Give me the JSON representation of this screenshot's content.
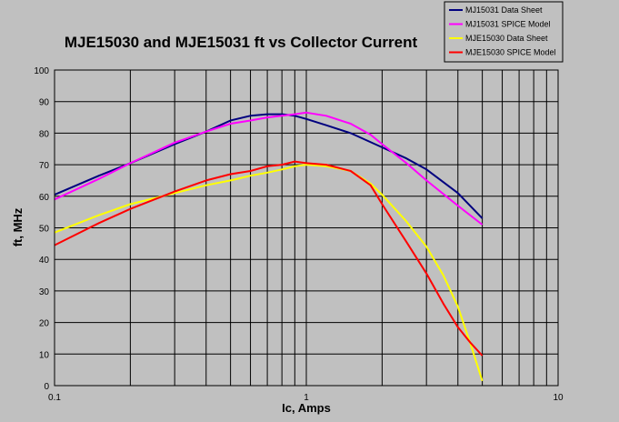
{
  "chart_data": {
    "type": "line",
    "title": "MJE15030 and MJE15031 ft vs Collector Current",
    "xlabel": "Ic, Amps",
    "ylabel": "ft, MHz",
    "xscale": "log",
    "xlim": [
      0.1,
      10
    ],
    "ylim": [
      0,
      100
    ],
    "x_ticks": [
      {
        "value": 0.1,
        "label": "0.1"
      },
      {
        "value": 1,
        "label": "1"
      },
      {
        "value": 10,
        "label": "10"
      }
    ],
    "y_ticks": [
      0,
      10,
      20,
      30,
      40,
      50,
      60,
      70,
      80,
      90,
      100
    ],
    "grid": true,
    "legend_position": "top-right",
    "background": "#c0c0c0",
    "series": [
      {
        "name": "MJ15031 Data Sheet",
        "color": "#00007f",
        "x": [
          0.1,
          0.15,
          0.2,
          0.3,
          0.4,
          0.5,
          0.6,
          0.7,
          0.8,
          0.9,
          1.0,
          1.2,
          1.5,
          2.0,
          2.5,
          3.0,
          4.0,
          5.0
        ],
        "y": [
          60.5,
          66.5,
          70.5,
          76.5,
          80.5,
          84,
          85.5,
          86,
          86,
          85.5,
          84.5,
          82.5,
          80,
          75.5,
          72,
          68.5,
          61,
          53
        ]
      },
      {
        "name": "MJ15031 SPICE Model",
        "color": "#ff00ff",
        "x": [
          0.1,
          0.15,
          0.2,
          0.3,
          0.4,
          0.5,
          0.6,
          0.7,
          0.8,
          0.9,
          1.0,
          1.2,
          1.5,
          1.8,
          2.0,
          2.5,
          3.0,
          4.0,
          5.0
        ],
        "y": [
          59,
          65.5,
          70.5,
          77,
          80.5,
          83,
          84,
          85,
          85.5,
          86,
          86.5,
          85.5,
          83,
          79.5,
          76.5,
          70.5,
          65,
          57,
          51
        ]
      },
      {
        "name": "MJE15030 Data Sheet",
        "color": "#ffff00",
        "x": [
          0.1,
          0.15,
          0.2,
          0.3,
          0.4,
          0.5,
          0.6,
          0.7,
          0.8,
          0.9,
          1.0,
          1.2,
          1.5,
          1.8,
          2.0,
          2.5,
          3.0,
          3.5,
          4.0,
          4.5,
          5.0
        ],
        "y": [
          48.5,
          54,
          57.5,
          61,
          63.5,
          65,
          66.5,
          67.5,
          68.5,
          69.5,
          70,
          69.5,
          68,
          64,
          60.5,
          52,
          44,
          35,
          25,
          13,
          1.5
        ]
      },
      {
        "name": "MJE15030 SPICE Model",
        "color": "#ff0000",
        "x": [
          0.1,
          0.15,
          0.2,
          0.3,
          0.4,
          0.5,
          0.6,
          0.7,
          0.8,
          0.9,
          1.0,
          1.2,
          1.5,
          1.8,
          2.0,
          2.5,
          3.0,
          3.5,
          4.0,
          4.5,
          5.0
        ],
        "y": [
          44.5,
          51.5,
          56,
          61.5,
          65,
          67,
          68,
          69.5,
          70,
          71,
          70.5,
          70,
          68,
          63.5,
          57.5,
          45.5,
          35.5,
          26,
          18.5,
          13.5,
          9.5
        ]
      }
    ]
  }
}
